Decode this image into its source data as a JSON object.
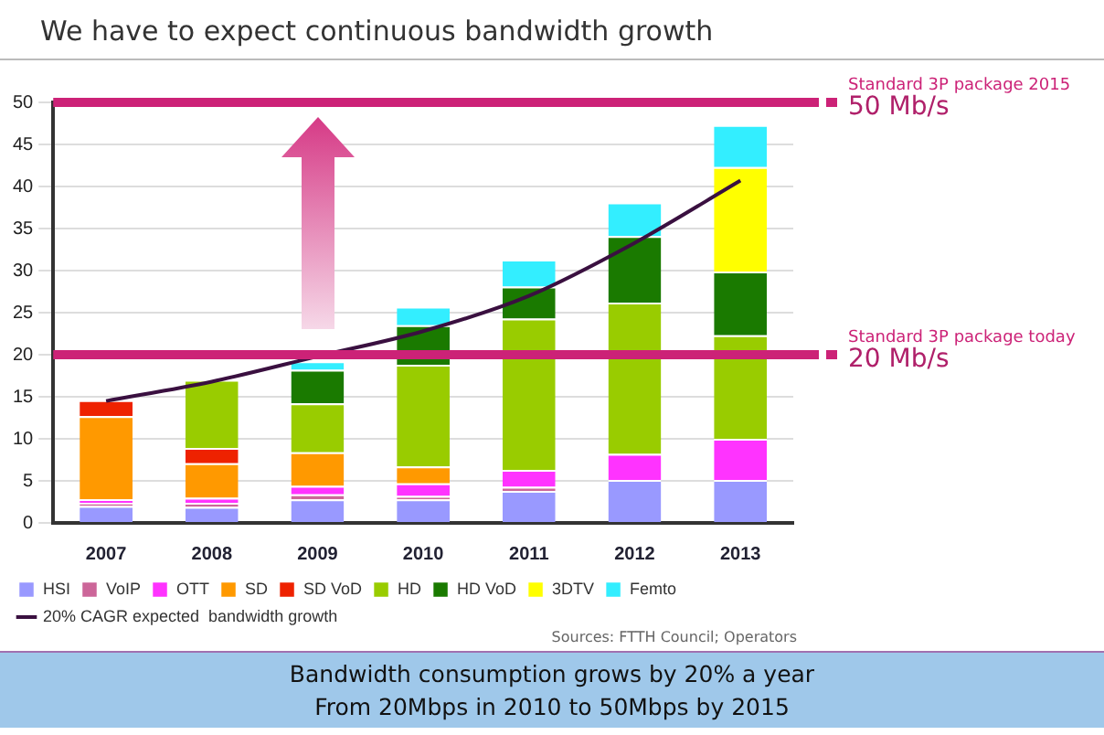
{
  "chart_data": {
    "type": "bar",
    "title": "We have to expect continuous bandwidth growth",
    "categories": [
      "2007",
      "2008",
      "2009",
      "2010",
      "2011",
      "2012",
      "2013"
    ],
    "stacked": true,
    "ylim": [
      0,
      50
    ],
    "yticks": [
      0,
      5,
      10,
      15,
      20,
      25,
      30,
      35,
      40,
      45,
      50
    ],
    "grid": "y",
    "legend": "bottom",
    "marker": "none",
    "series": [
      {
        "name": "HSI",
        "color": "#9999ff",
        "values": [
          2.0,
          1.9,
          2.8,
          2.8,
          3.8,
          5.1,
          5.1
        ]
      },
      {
        "name": "VoIP",
        "color": "#cc6699",
        "values": [
          0.4,
          0.5,
          0.6,
          0.4,
          0.5,
          null,
          null
        ]
      },
      {
        "name": "OTT",
        "color": "#ff33ff",
        "values": [
          0.4,
          0.6,
          1.0,
          1.5,
          2.0,
          3.1,
          4.9
        ]
      },
      {
        "name": "SD",
        "color": "#ff9900",
        "values": [
          9.9,
          4.1,
          4.0,
          2.0,
          null,
          null,
          null
        ]
      },
      {
        "name": "SD VoD",
        "color": "#ee2200",
        "values": [
          1.9,
          1.8,
          null,
          null,
          null,
          null,
          null
        ]
      },
      {
        "name": "HD",
        "color": "#99cc00",
        "values": [
          null,
          8.1,
          5.8,
          12.1,
          18.0,
          18.0,
          12.3
        ]
      },
      {
        "name": "HD VoD",
        "color": "#1a7a00",
        "values": [
          null,
          null,
          4.0,
          4.7,
          3.8,
          7.9,
          7.6
        ]
      },
      {
        "name": "3DTV",
        "color": "#ffff00",
        "values": [
          null,
          null,
          null,
          null,
          null,
          null,
          12.4
        ]
      },
      {
        "name": "Femto",
        "color": "#33eeff",
        "values": [
          null,
          null,
          1.0,
          2.2,
          3.2,
          4.0,
          5.0
        ]
      },
      {
        "name": "20% CAGR expected  bandwidth growth",
        "type": "line",
        "color": "#3a1040",
        "values": [
          14.5,
          16.8,
          19.8,
          22.8,
          27.0,
          33.3,
          40.7
        ]
      }
    ],
    "ref_lines": [
      {
        "axis": "y",
        "value": 50,
        "label": "Standard 3P package 2015",
        "color": "#cc2277"
      },
      {
        "axis": "y",
        "value": 20,
        "label": "Standard 3P package today",
        "color": "#cc2277"
      }
    ],
    "annotations": [
      "50 Mb/s",
      "20 Mb/s",
      "Sources: FTTH Council; Operators",
      "Bandwidth consumption grows by 20% a year",
      "From 20Mbps in 2010 to 50Mbps by 2015"
    ]
  }
}
